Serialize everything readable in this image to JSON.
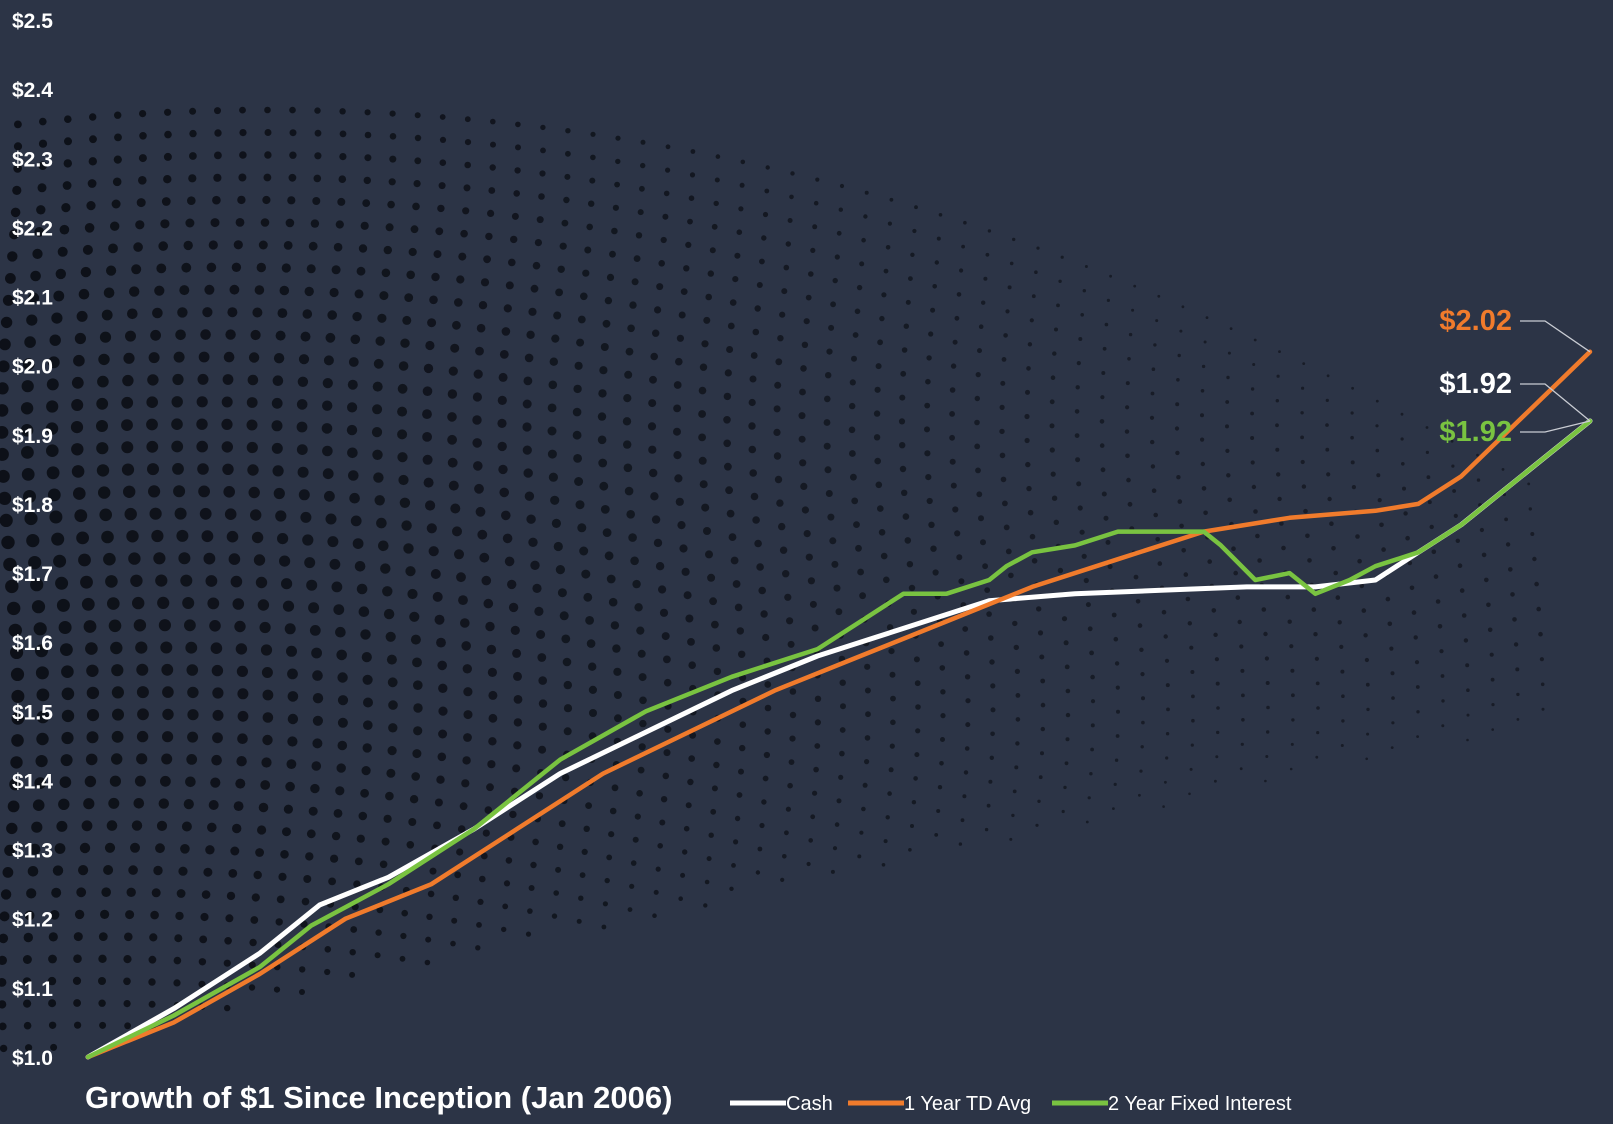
{
  "colors": {
    "background": "#2c3446",
    "dots": "#0c0f16",
    "text": "#ffffff"
  },
  "chart_data": {
    "type": "line",
    "title": "Growth of $1 Since Inception (Jan 2006)",
    "xlabel": "",
    "ylabel": "",
    "ylim": [
      1.0,
      2.5
    ],
    "y_ticks": [
      "$1.0",
      "$1.1",
      "$1.2",
      "$1.3",
      "$1.4",
      "$1.5",
      "$1.6",
      "$1.7",
      "$1.8",
      "$1.9",
      "$2.0",
      "$2.1",
      "$2.2",
      "$2.3",
      "$2.4",
      "$2.5"
    ],
    "y_tick_values": [
      1.0,
      1.1,
      1.2,
      1.3,
      1.4,
      1.5,
      1.6,
      1.7,
      1.8,
      1.9,
      2.0,
      2.1,
      2.2,
      2.3,
      2.4,
      2.5
    ],
    "x_range": [
      2006.0,
      2023.5
    ],
    "grid": false,
    "legend_position": "bottom",
    "series": [
      {
        "name": "Cash",
        "color": "#ffffff",
        "end_label": "$1.92",
        "x": [
          2006.0,
          2007.0,
          2008.0,
          2008.7,
          2009.5,
          2010.5,
          2011.5,
          2012.5,
          2013.5,
          2014.5,
          2015.5,
          2016.5,
          2017.5,
          2018.5,
          2019.5,
          2020.3,
          2021.0,
          2021.5,
          2022.0,
          2022.5,
          2023.0,
          2023.5
        ],
        "values": [
          1.0,
          1.07,
          1.15,
          1.22,
          1.26,
          1.33,
          1.41,
          1.47,
          1.53,
          1.58,
          1.62,
          1.66,
          1.67,
          1.675,
          1.68,
          1.68,
          1.69,
          1.73,
          1.77,
          1.82,
          1.87,
          1.92
        ]
      },
      {
        "name": "1 Year TD Avg",
        "color": "#f07b2c",
        "end_label": "$2.02",
        "x": [
          2006.0,
          2007.0,
          2008.0,
          2009.0,
          2010.0,
          2011.0,
          2012.0,
          2013.0,
          2014.0,
          2015.0,
          2016.0,
          2017.0,
          2018.0,
          2019.0,
          2020.0,
          2020.5,
          2021.0,
          2021.5,
          2022.0,
          2022.5,
          2023.0,
          2023.5
        ],
        "values": [
          1.0,
          1.05,
          1.12,
          1.2,
          1.25,
          1.33,
          1.41,
          1.47,
          1.53,
          1.58,
          1.63,
          1.68,
          1.72,
          1.76,
          1.78,
          1.785,
          1.79,
          1.8,
          1.84,
          1.9,
          1.96,
          2.02
        ]
      },
      {
        "name": "2 Year Fixed Interest",
        "color": "#79c341",
        "end_label": "$1.92",
        "x": [
          2006.0,
          2007.0,
          2008.0,
          2008.6,
          2009.5,
          2010.5,
          2011.0,
          2011.5,
          2012.5,
          2013.5,
          2014.5,
          2015.0,
          2015.5,
          2016.0,
          2016.5,
          2016.7,
          2017.0,
          2017.5,
          2018.0,
          2018.5,
          2019.0,
          2019.2,
          2019.6,
          2020.0,
          2020.3,
          2020.7,
          2021.0,
          2021.5,
          2022.0,
          2022.5,
          2023.0,
          2023.5
        ],
        "values": [
          1.0,
          1.06,
          1.13,
          1.19,
          1.25,
          1.33,
          1.38,
          1.43,
          1.5,
          1.55,
          1.59,
          1.63,
          1.67,
          1.67,
          1.69,
          1.71,
          1.73,
          1.74,
          1.76,
          1.76,
          1.76,
          1.74,
          1.69,
          1.7,
          1.67,
          1.69,
          1.71,
          1.73,
          1.77,
          1.82,
          1.87,
          1.92
        ]
      }
    ]
  }
}
